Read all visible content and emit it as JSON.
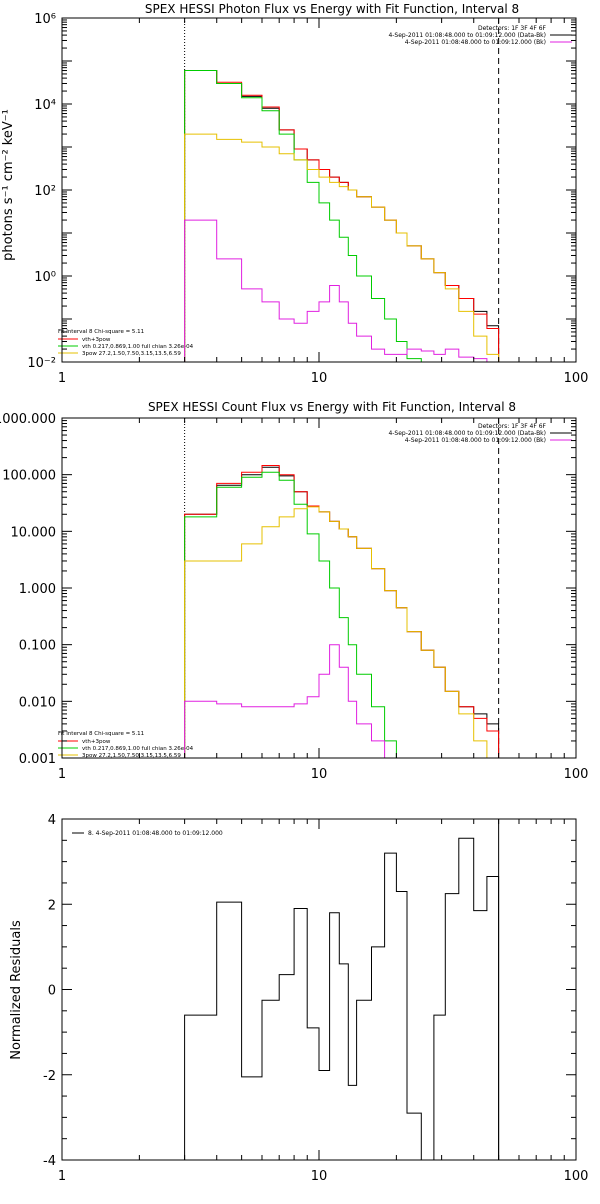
{
  "chart_data": [
    {
      "type": "line",
      "title": "SPEX HESSI Photon Flux vs Energy with Fit Function, Interval 8",
      "xlabel": "",
      "ylabel": "photons s⁻¹ cm⁻² keV⁻¹",
      "xscale": "log",
      "yscale": "log",
      "xlim": [
        1,
        100
      ],
      "ylim": [
        0.01,
        1000000
      ],
      "x_ticks": [
        1,
        10,
        100
      ],
      "x_tick_labels": [
        "1",
        "10",
        "100"
      ],
      "y_ticks": [
        0.01,
        1,
        100,
        10000,
        1000000
      ],
      "y_tick_labels": [
        "10⁻²",
        "10⁰",
        "10²",
        "10⁴",
        "10⁶"
      ],
      "vlines": [
        {
          "x": 3,
          "style": "dotted"
        },
        {
          "x": 50,
          "style": "dashed"
        }
      ],
      "header_lines": [
        "Detectors: 1F 3F 4F 6F",
        "4-Sep-2011 01:08:48.000 to 01:09:12.000 (Data-Bk)",
        "4-Sep-2011 01:08:48.000 to 01:09:12.000 (Bk)"
      ],
      "fit_lines": [
        "Fit Interval 8   Chi-square = 5.11",
        "vth+3pow",
        "vth 0.217,0.869,1.00  full chian 3.26e-04",
        "3pow 27.2,1.50,7.50,3.15,13.5,6.59"
      ],
      "bin_edges": [
        3,
        4,
        5,
        6,
        7,
        8,
        9,
        10,
        11,
        12,
        13,
        14,
        16,
        18,
        20,
        22,
        25,
        28,
        31,
        35,
        40,
        45,
        50
      ],
      "series": [
        {
          "name": "Data-Bk",
          "color": "#000000",
          "values": [
            60000,
            30000,
            15000,
            8000,
            2500,
            900,
            500,
            300,
            200,
            150,
            100,
            70,
            40,
            20,
            10,
            5,
            2.5,
            1.2,
            0.6,
            0.3,
            0.15,
            0.07
          ]
        },
        {
          "name": "vth+3pow",
          "color": "#ff0000",
          "values": [
            60000,
            32000,
            16000,
            8500,
            2500,
            900,
            500,
            300,
            200,
            150,
            100,
            70,
            40,
            20,
            10,
            5,
            2.5,
            1.2,
            0.6,
            0.3,
            0.13,
            0.06
          ]
        },
        {
          "name": "vth",
          "color": "#00cc00",
          "values": [
            60000,
            30000,
            14000,
            7000,
            2000,
            500,
            150,
            50,
            20,
            8,
            3,
            1,
            0.3,
            0.1,
            0.03,
            0.012,
            0.01,
            0.01,
            0.01,
            0.01,
            0.01,
            0.01
          ]
        },
        {
          "name": "3pow",
          "color": "#e6c000",
          "values": [
            2000,
            1500,
            1300,
            1000,
            700,
            500,
            300,
            200,
            150,
            120,
            100,
            70,
            40,
            20,
            10,
            5,
            2.5,
            1.2,
            0.5,
            0.15,
            0.04,
            0.015
          ]
        },
        {
          "name": "Bk",
          "color": "#e020e0",
          "values": [
            20,
            2.5,
            0.5,
            0.25,
            0.1,
            0.08,
            0.15,
            0.25,
            0.6,
            0.25,
            0.08,
            0.04,
            0.02,
            0.015,
            0.015,
            0.02,
            0.018,
            0.015,
            0.02,
            0.013,
            0.012,
            0.01
          ]
        }
      ]
    },
    {
      "type": "line",
      "title": "SPEX HESSI Count Flux vs Energy with Fit Function, Interval 8",
      "xlabel": "",
      "ylabel": "",
      "xscale": "log",
      "yscale": "log",
      "xlim": [
        1,
        100
      ],
      "ylim": [
        0.001,
        1000
      ],
      "x_ticks": [
        1,
        10,
        100
      ],
      "x_tick_labels": [
        "1",
        "10",
        "100"
      ],
      "y_ticks": [
        0.001,
        0.01,
        0.1,
        1,
        10,
        100,
        1000
      ],
      "y_tick_labels": [
        "0.001",
        "0.010",
        "0.100",
        "1.000",
        "10.000",
        "100.000",
        "1000.000"
      ],
      "vlines": [
        {
          "x": 3,
          "style": "dotted"
        },
        {
          "x": 50,
          "style": "dashed"
        }
      ],
      "header_lines": [
        "Detectors: 1F 3F 4F 6F",
        "4-Sep-2011 01:08:48.000 to 01:09:12.000 (Data-Bk)",
        "4-Sep-2011 01:08:48.000 to 01:09:12.000 (Bk)"
      ],
      "fit_lines": [
        "Fit Interval 8   Chi-square = 5.11",
        "vth+3pow",
        "vth 0.217,0.869,1.00  full chian 3.26e-04",
        "3pow 27.2,1.50,7.50,3.15,13.5,6.59"
      ],
      "bin_edges": [
        3,
        4,
        5,
        6,
        7,
        8,
        9,
        10,
        11,
        12,
        13,
        14,
        16,
        18,
        20,
        22,
        25,
        28,
        31,
        35,
        40,
        45,
        50
      ],
      "series": [
        {
          "name": "Data-Bk",
          "color": "#000000",
          "values": [
            20,
            65,
            100,
            135,
            95,
            50,
            28,
            22,
            15,
            11,
            8,
            5,
            2.2,
            0.9,
            0.45,
            0.17,
            0.08,
            0.04,
            0.015,
            0.008,
            0.006,
            0.004
          ]
        },
        {
          "name": "vth+3pow",
          "color": "#ff0000",
          "values": [
            20,
            70,
            110,
            145,
            100,
            50,
            28,
            22,
            15,
            11,
            8,
            5,
            2.2,
            0.9,
            0.45,
            0.17,
            0.08,
            0.04,
            0.015,
            0.008,
            0.005,
            0.003
          ]
        },
        {
          "name": "vth",
          "color": "#00cc00",
          "values": [
            18,
            60,
            90,
            110,
            80,
            30,
            9,
            3,
            1,
            0.3,
            0.1,
            0.03,
            0.008,
            0.002,
            0.001,
            0.001,
            0.001,
            0.001,
            0.001,
            0.001,
            0.001,
            0.001
          ]
        },
        {
          "name": "3pow",
          "color": "#e6c000",
          "values": [
            3,
            3,
            6,
            12,
            18,
            25,
            27,
            22,
            15,
            11,
            8,
            5,
            2.2,
            0.9,
            0.45,
            0.17,
            0.08,
            0.04,
            0.015,
            0.006,
            0.002,
            0.001
          ]
        },
        {
          "name": "Bk",
          "color": "#e020e0",
          "values": [
            0.01,
            0.009,
            0.008,
            0.008,
            0.008,
            0.009,
            0.012,
            0.03,
            0.1,
            0.04,
            0.01,
            0.004,
            0.002,
            0.001,
            0.001,
            0.001,
            0.001,
            0.001,
            0.001,
            0.001,
            0.001,
            0.001
          ]
        }
      ]
    },
    {
      "type": "line",
      "title": "",
      "xlabel": "",
      "ylabel": "Normalized Residuals",
      "xscale": "log",
      "yscale": "linear",
      "xlim": [
        1,
        100
      ],
      "ylim": [
        -4,
        4
      ],
      "x_ticks": [
        1,
        10,
        100
      ],
      "x_tick_labels": [
        "1",
        "10",
        "100"
      ],
      "y_ticks": [
        -4,
        -2,
        0,
        2,
        4
      ],
      "y_tick_labels": [
        "-4",
        "-2",
        "0",
        "2",
        "4"
      ],
      "vlines": [
        {
          "x": 50,
          "style": "solid"
        }
      ],
      "legend": [
        {
          "label": "8.  4-Sep-2011 01:08:48.000 to 01:09:12.000",
          "color": "#000000"
        }
      ],
      "bin_edges": [
        3,
        4,
        5,
        6,
        7,
        8,
        9,
        10,
        11,
        12,
        13,
        14,
        16,
        18,
        20,
        22,
        25,
        28,
        31,
        35,
        40,
        45,
        50
      ],
      "series": [
        {
          "name": "",
          "color": "#000000",
          "values": [
            -0.6,
            2.05,
            -2.05,
            -0.25,
            0.35,
            1.9,
            -0.9,
            -1.9,
            1.8,
            0.6,
            -2.25,
            -0.25,
            1.0,
            3.2,
            2.3,
            -2.9,
            -4.05,
            -0.6,
            2.25,
            3.55,
            1.85,
            2.65
          ]
        }
      ]
    }
  ]
}
